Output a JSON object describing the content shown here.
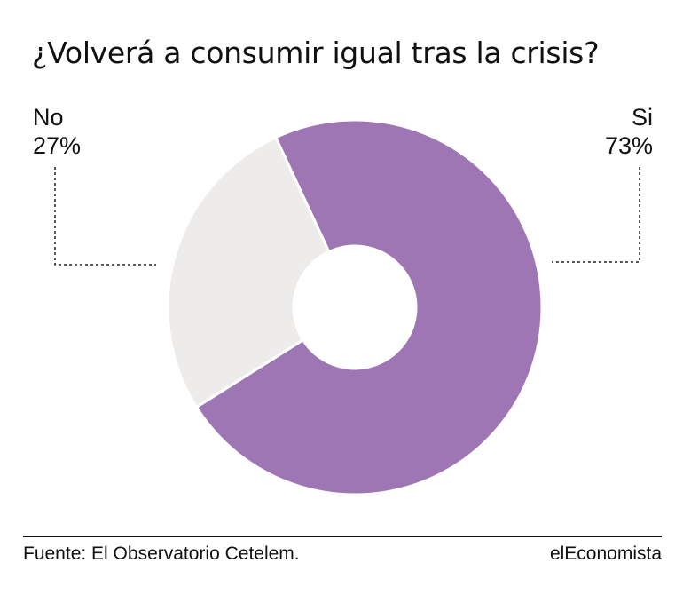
{
  "title": "¿Volverá a consumir igual tras la crisis?",
  "chart_data": {
    "type": "pie",
    "variant": "donut",
    "title": "¿Volverá a consumir igual tras la crisis?",
    "slices": [
      {
        "label": "Si",
        "value": 73,
        "value_label": "73%",
        "color": "#9e76b4"
      },
      {
        "label": "No",
        "value": 27,
        "value_label": "27%",
        "color": "#eeeceb"
      }
    ],
    "legend": "none",
    "labels_position": "outside with dashed leader lines"
  },
  "footer": {
    "source": "Fuente: El Observatorio Cetelem.",
    "brand": "elEconomista"
  }
}
